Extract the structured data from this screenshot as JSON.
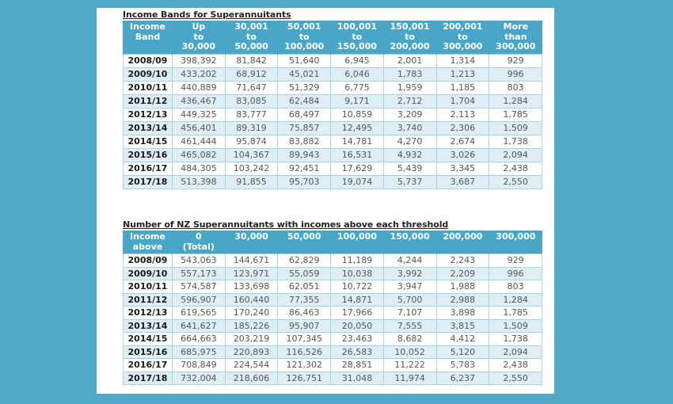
{
  "tables": [
    {
      "title": "Income Bands for Superannuitants",
      "headers": [
        [
          "Income",
          "Band",
          ""
        ],
        [
          "Up",
          "to",
          "30,000"
        ],
        [
          "30,001",
          "to",
          "50,000"
        ],
        [
          "50,001",
          "to",
          "100,000"
        ],
        [
          "100,001",
          "to",
          "150,000"
        ],
        [
          "150,001",
          "to",
          "200,000"
        ],
        [
          "200,001",
          "to",
          "300,000"
        ],
        [
          "More",
          "than",
          "300,000"
        ]
      ],
      "rows": [
        [
          "2008/09",
          "398,392",
          "81,842",
          "51,640",
          "6,945",
          "2,001",
          "1,314",
          "929"
        ],
        [
          "2009/10",
          "433,202",
          "68,912",
          "45,021",
          "6,046",
          "1,783",
          "1,213",
          "996"
        ],
        [
          "2010/11",
          "440,889",
          "71,647",
          "51,329",
          "6,775",
          "1,959",
          "1,185",
          "803"
        ],
        [
          "2011/12",
          "436,467",
          "83,085",
          "62,484",
          "9,171",
          "2,712",
          "1,704",
          "1,284"
        ],
        [
          "2012/13",
          "449,325",
          "83,777",
          "68,497",
          "10,859",
          "3,209",
          "2,113",
          "1,785"
        ],
        [
          "2013/14",
          "456,401",
          "89,319",
          "75,857",
          "12,495",
          "3,740",
          "2,306",
          "1,509"
        ],
        [
          "2014/15",
          "461,444",
          "95,874",
          "83,882",
          "14,781",
          "4,270",
          "2,674",
          "1,738"
        ],
        [
          "2015/16",
          "465,082",
          "104,367",
          "89,943",
          "16,531",
          "4,932",
          "3,026",
          "2,094"
        ],
        [
          "2016/17",
          "484,305",
          "103,242",
          "92,451",
          "17,629",
          "5,439",
          "3,345",
          "2,438"
        ],
        [
          "2017/18",
          "513,398",
          "91,855",
          "95,703",
          "19,074",
          "5,737",
          "3,687",
          "2,550"
        ]
      ]
    },
    {
      "title": "Number of NZ Superannuitants with incomes above each threshold",
      "headers": [
        [
          "Income",
          "above"
        ],
        [
          "0",
          "(Total)"
        ],
        [
          "30,000",
          ""
        ],
        [
          "50,000",
          ""
        ],
        [
          "100,000",
          ""
        ],
        [
          "150,000",
          ""
        ],
        [
          "200,000",
          ""
        ],
        [
          "300,000",
          ""
        ]
      ],
      "rows": [
        [
          "2008/09",
          "543,063",
          "144,671",
          "62,829",
          "11,189",
          "4,244",
          "2,243",
          "929"
        ],
        [
          "2009/10",
          "557,173",
          "123,971",
          "55,059",
          "10,038",
          "3,992",
          "2,209",
          "996"
        ],
        [
          "2010/11",
          "574,587",
          "133,698",
          "62,051",
          "10,722",
          "3,947",
          "1,988",
          "803"
        ],
        [
          "2011/12",
          "596,907",
          "160,440",
          "77,355",
          "14,871",
          "5,700",
          "2,988",
          "1,284"
        ],
        [
          "2012/13",
          "619,565",
          "170,240",
          "86,463",
          "17,966",
          "7,107",
          "3,898",
          "1,785"
        ],
        [
          "2013/14",
          "641,627",
          "185,226",
          "95,907",
          "20,050",
          "7,555",
          "3,815",
          "1,509"
        ],
        [
          "2014/15",
          "664,663",
          "203,219",
          "107,345",
          "23,463",
          "8,682",
          "4,412",
          "1,738"
        ],
        [
          "2015/16",
          "685,975",
          "220,893",
          "116,526",
          "26,583",
          "10,052",
          "5,120",
          "2,094"
        ],
        [
          "2016/17",
          "708,849",
          "224,544",
          "121,302",
          "28,851",
          "11,222",
          "5,783",
          "2,438"
        ],
        [
          "2017/18",
          "732,004",
          "218,606",
          "126,751",
          "31,048",
          "11,974",
          "6,237",
          "2,550"
        ]
      ]
    }
  ],
  "colors": {
    "background": "#4fa9c7",
    "header": "#4aa6c6",
    "alt_row": "#deeef5",
    "border": "#a9d3e2"
  }
}
